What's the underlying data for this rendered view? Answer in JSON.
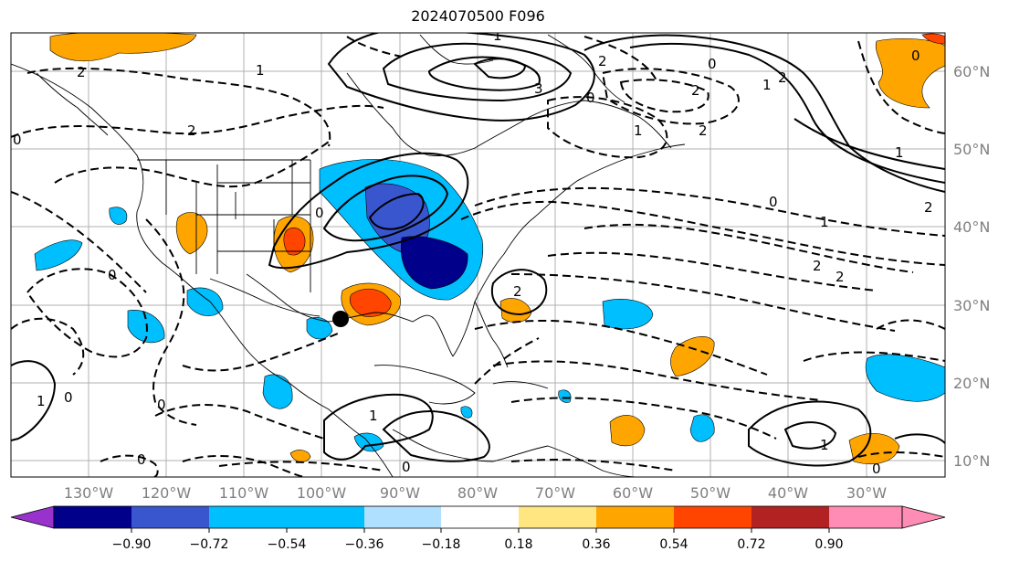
{
  "title": "2024070500 F096",
  "latitude_labels": [
    "60°N",
    "50°N",
    "40°N",
    "30°N",
    "20°N",
    "10°N"
  ],
  "longitude_labels": [
    "130°W",
    "120°W",
    "110°W",
    "100°W",
    "90°W",
    "80°W",
    "70°W",
    "60°W",
    "50°W",
    "40°W",
    "30°W"
  ],
  "colorbar": {
    "ticks": [
      "−0.90",
      "−0.72",
      "−0.54",
      "−0.36",
      "−0.18",
      "0.18",
      "0.36",
      "0.54",
      "0.72",
      "0.90"
    ],
    "colors": [
      "#9932cc",
      "#00008b",
      "#3a56cf",
      "#00bfff",
      "#b0e0ff",
      "#ffffff",
      "#ffe680",
      "#ffa500",
      "#ff4500",
      "#b22222",
      "#ff8cb4"
    ],
    "extend": "both"
  },
  "contour_labels": [
    "2",
    "1",
    "0",
    "2",
    "1",
    "3",
    "2",
    "0",
    "2",
    "1",
    "2",
    "0",
    "1",
    "2",
    "2",
    "0",
    "1",
    "0",
    "1",
    "2",
    "0",
    "2",
    "2",
    "1",
    "0",
    "0",
    "1",
    "1",
    "0",
    "0",
    "0",
    "0"
  ],
  "marker": "black-dot"
}
